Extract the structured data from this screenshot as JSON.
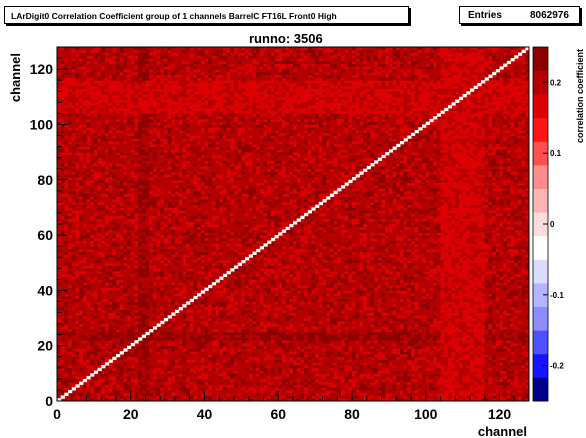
{
  "header": {
    "title": "LArDigit0 Correlation Coefficient group of 1 channels BarrelC FT16L Front0 High",
    "entries_label": "Entries",
    "entries_value": "8062976",
    "runno": "runno: 3506"
  },
  "chart_data": {
    "type": "heatmap",
    "title": "LArDigit0 Correlation Coefficient group of 1 channels BarrelC FT16L Front0 High",
    "subtitle": "runno: 3506",
    "xlabel": "channel",
    "ylabel": "channel",
    "zlabel": "correlation coefficient",
    "xlim": [
      0,
      128
    ],
    "ylim": [
      0,
      128
    ],
    "zlim": [
      -0.25,
      0.25
    ],
    "nbins_x": 128,
    "nbins_y": 128,
    "xticks": [
      "0",
      "20",
      "40",
      "60",
      "80",
      "100",
      "120"
    ],
    "yticks": [
      "0",
      "20",
      "40",
      "60",
      "80",
      "100",
      "120"
    ],
    "zticks": [
      "0.2",
      "0.1",
      "0",
      "-0.1",
      "-0.2"
    ],
    "typical_offdiagonal_value": 0.2,
    "diagonal_value": 1.0,
    "bands": [
      {
        "axis": "x",
        "range": [
          22,
          25
        ],
        "value": 0.22
      },
      {
        "axis": "y",
        "range": [
          22,
          25
        ],
        "value": 0.22
      },
      {
        "axis": "x",
        "range": [
          104,
          116
        ],
        "value": 0.18
      },
      {
        "axis": "y",
        "range": [
          104,
          116
        ],
        "value": 0.18
      }
    ],
    "entries": 8062976,
    "colors": {
      "palette": [
        "#00008c",
        "#1414ff",
        "#5050ff",
        "#8c8cff",
        "#b4b4ff",
        "#dcdcff",
        "#ffffff",
        "#ffdcdc",
        "#ffb4b4",
        "#ff8c8c",
        "#ff5050",
        "#ff1414",
        "#dc0000",
        "#b40000",
        "#8c0000"
      ]
    }
  }
}
